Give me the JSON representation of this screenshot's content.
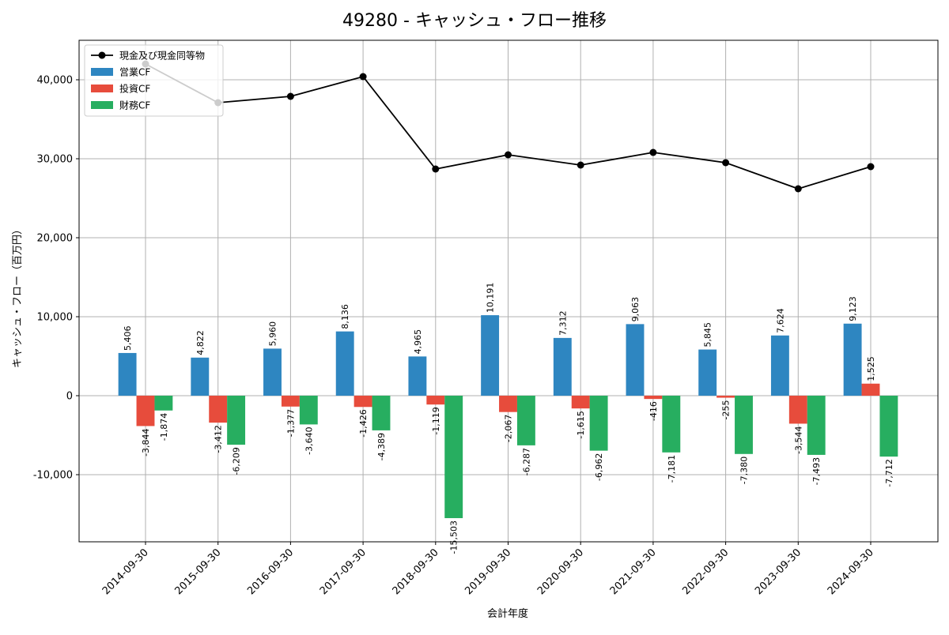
{
  "chart_data": {
    "type": "bar",
    "title": "49280 - キャッシュ・フロー推移",
    "xlabel": "会計年度",
    "ylabel": "キャッシュ・フロー（百万円）",
    "categories": [
      "2014-09-30",
      "2015-09-30",
      "2016-09-30",
      "2017-09-30",
      "2018-09-30",
      "2019-09-30",
      "2020-09-30",
      "2021-09-30",
      "2022-09-30",
      "2023-09-30",
      "2024-09-30"
    ],
    "ylim": [
      -18500,
      45000
    ],
    "yticks": [
      -10000,
      0,
      10000,
      20000,
      30000,
      40000
    ],
    "ytick_labels": [
      "-10,000",
      "0",
      "10,000",
      "20,000",
      "30,000",
      "40,000"
    ],
    "grid": true,
    "legend_position": "top-left",
    "series": [
      {
        "name": "現金及び現金同等物",
        "kind": "line",
        "color": "#000000",
        "values": [
          42000,
          37100,
          37900,
          40400,
          28700,
          30500,
          29200,
          30800,
          29500,
          26200,
          29000
        ]
      },
      {
        "name": "営業CF",
        "kind": "bar",
        "color": "#2e86c1",
        "values": [
          5406,
          4822,
          5960,
          8136,
          4965,
          10191,
          7312,
          9063,
          5845,
          7624,
          9123
        ],
        "labels": [
          "5,406",
          "4,822",
          "5,960",
          "8,136",
          "4,965",
          "10,191",
          "7,312",
          "9,063",
          "5,845",
          "7,624",
          "9,123"
        ]
      },
      {
        "name": "投資CF",
        "kind": "bar",
        "color": "#e74c3c",
        "values": [
          -3844,
          -3412,
          -1377,
          -1426,
          -1119,
          -2067,
          -1615,
          -416,
          -255,
          -3544,
          1525
        ],
        "labels": [
          "-3,844",
          "-3,412",
          "-1,377",
          "-1,426",
          "-1,119",
          "-2,067",
          "-1,615",
          "-416",
          "-255",
          "-3,544",
          "1,525"
        ]
      },
      {
        "name": "財務CF",
        "kind": "bar",
        "color": "#27ae60",
        "values": [
          -1874,
          -6209,
          -3640,
          -4389,
          -15503,
          -6287,
          -6962,
          -7181,
          -7380,
          -7493,
          -7712
        ],
        "labels": [
          "-1,874",
          "-6,209",
          "-3,640",
          "-4,389",
          "-15,503",
          "-6,287",
          "-6,962",
          "-7,181",
          "-7,380",
          "-7,493",
          "-7,712"
        ]
      }
    ]
  }
}
